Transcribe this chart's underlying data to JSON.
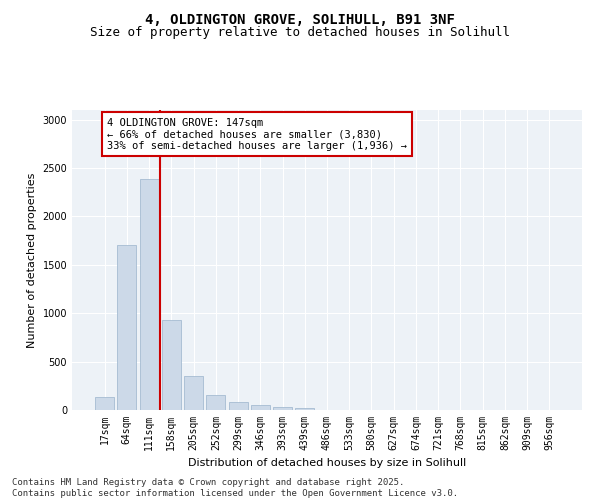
{
  "title_line1": "4, OLDINGTON GROVE, SOLIHULL, B91 3NF",
  "title_line2": "Size of property relative to detached houses in Solihull",
  "xlabel": "Distribution of detached houses by size in Solihull",
  "ylabel": "Number of detached properties",
  "categories": [
    "17sqm",
    "64sqm",
    "111sqm",
    "158sqm",
    "205sqm",
    "252sqm",
    "299sqm",
    "346sqm",
    "393sqm",
    "439sqm",
    "486sqm",
    "533sqm",
    "580sqm",
    "627sqm",
    "674sqm",
    "721sqm",
    "768sqm",
    "815sqm",
    "862sqm",
    "909sqm",
    "956sqm"
  ],
  "values": [
    130,
    1710,
    2390,
    930,
    350,
    155,
    85,
    50,
    35,
    20,
    5,
    0,
    0,
    0,
    0,
    0,
    0,
    0,
    0,
    0,
    0
  ],
  "bar_color": "#ccd9e8",
  "bar_edgecolor": "#9ab4cc",
  "vline_color": "#cc0000",
  "vline_x": 2.5,
  "annotation_text": "4 OLDINGTON GROVE: 147sqm\n← 66% of detached houses are smaller (3,830)\n33% of semi-detached houses are larger (1,936) →",
  "annotation_box_facecolor": "#ffffff",
  "annotation_box_edgecolor": "#cc0000",
  "ylim": [
    0,
    3100
  ],
  "yticks": [
    0,
    500,
    1000,
    1500,
    2000,
    2500,
    3000
  ],
  "background_color": "#edf2f7",
  "footer_text": "Contains HM Land Registry data © Crown copyright and database right 2025.\nContains public sector information licensed under the Open Government Licence v3.0.",
  "title_fontsize": 10,
  "subtitle_fontsize": 9,
  "axis_label_fontsize": 8,
  "tick_fontsize": 7,
  "annotation_fontsize": 7.5,
  "footer_fontsize": 6.5
}
